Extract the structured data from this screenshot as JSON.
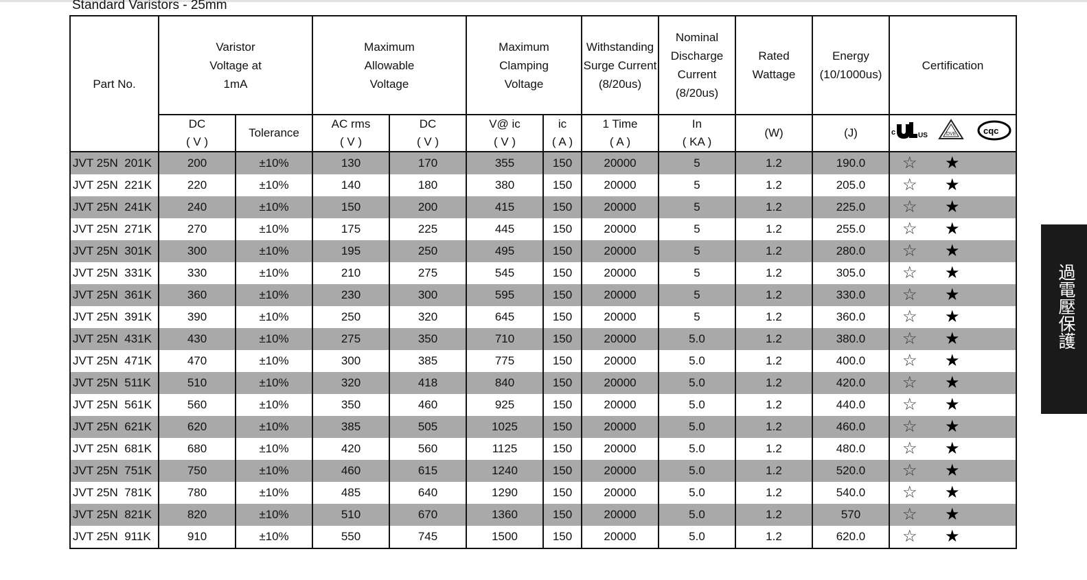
{
  "title": "Standard Varistors - 25mm",
  "header": {
    "part_no": "Part No.",
    "varistor_voltage": "Varistor Voltage at 1mA",
    "max_allowable_voltage": "Maximum Allowable Voltage",
    "max_clamping_voltage": "Maximum Clamping Voltage",
    "withstanding_surge_current": "Withstanding Surge Current (8/20us)",
    "nominal_discharge_current": "Nominal Discharge Current (8/20us)",
    "rated_wattage": "Rated Wattage",
    "energy": "Energy (10/1000us)",
    "certification": "Certification",
    "dc": "DC",
    "dc_unit": "( V )",
    "tolerance": "Tolerance",
    "ac_rms": "AC rms",
    "ac_unit": "( V )",
    "dc2": "DC",
    "dc2_unit": "( V )",
    "v_at_ic": "V@ ic",
    "v_unit": "( V )",
    "ic": "ic",
    "ic_unit": "( A )",
    "one_time": "1 Time",
    "one_time_unit": "( A )",
    "in": "In",
    "in_unit": "( KA )",
    "w_unit": "(W)",
    "j_unit": "(J)"
  },
  "cert_logos": [
    "ul-listed-logo",
    "vde-logo",
    "cqc-logo"
  ],
  "rows": [
    {
      "part": "JVT 25N  201K",
      "dc": "200",
      "tol": "±10%",
      "ac": "130",
      "dcmax": "170",
      "vc": "355",
      "ic": "150",
      "surge": "20000",
      "in": "5",
      "watt": "1.2",
      "energy": "190.0",
      "cert_ul": "☆",
      "cert_vde": "★"
    },
    {
      "part": "JVT 25N  221K",
      "dc": "220",
      "tol": "±10%",
      "ac": "140",
      "dcmax": "180",
      "vc": "380",
      "ic": "150",
      "surge": "20000",
      "in": "5",
      "watt": "1.2",
      "energy": "205.0",
      "cert_ul": "☆",
      "cert_vde": "★"
    },
    {
      "part": "JVT 25N  241K",
      "dc": "240",
      "tol": "±10%",
      "ac": "150",
      "dcmax": "200",
      "vc": "415",
      "ic": "150",
      "surge": "20000",
      "in": "5",
      "watt": "1.2",
      "energy": "225.0",
      "cert_ul": "☆",
      "cert_vde": "★"
    },
    {
      "part": "JVT 25N  271K",
      "dc": "270",
      "tol": "±10%",
      "ac": "175",
      "dcmax": "225",
      "vc": "445",
      "ic": "150",
      "surge": "20000",
      "in": "5",
      "watt": "1.2",
      "energy": "255.0",
      "cert_ul": "☆",
      "cert_vde": "★"
    },
    {
      "part": "JVT 25N  301K",
      "dc": "300",
      "tol": "±10%",
      "ac": "195",
      "dcmax": "250",
      "vc": "495",
      "ic": "150",
      "surge": "20000",
      "in": "5",
      "watt": "1.2",
      "energy": "280.0",
      "cert_ul": "☆",
      "cert_vde": "★"
    },
    {
      "part": "JVT 25N  331K",
      "dc": "330",
      "tol": "±10%",
      "ac": "210",
      "dcmax": "275",
      "vc": "545",
      "ic": "150",
      "surge": "20000",
      "in": "5",
      "watt": "1.2",
      "energy": "305.0",
      "cert_ul": "☆",
      "cert_vde": "★"
    },
    {
      "part": "JVT 25N  361K",
      "dc": "360",
      "tol": "±10%",
      "ac": "230",
      "dcmax": "300",
      "vc": "595",
      "ic": "150",
      "surge": "20000",
      "in": "5",
      "watt": "1.2",
      "energy": "330.0",
      "cert_ul": "☆",
      "cert_vde": "★"
    },
    {
      "part": "JVT 25N  391K",
      "dc": "390",
      "tol": "±10%",
      "ac": "250",
      "dcmax": "320",
      "vc": "645",
      "ic": "150",
      "surge": "20000",
      "in": "5",
      "watt": "1.2",
      "energy": "360.0",
      "cert_ul": "☆",
      "cert_vde": "★"
    },
    {
      "part": "JVT 25N  431K",
      "dc": "430",
      "tol": "±10%",
      "ac": "275",
      "dcmax": "350",
      "vc": "710",
      "ic": "150",
      "surge": "20000",
      "in": "5.0",
      "watt": "1.2",
      "energy": "380.0",
      "cert_ul": "☆",
      "cert_vde": "★"
    },
    {
      "part": "JVT 25N  471K",
      "dc": "470",
      "tol": "±10%",
      "ac": "300",
      "dcmax": "385",
      "vc": "775",
      "ic": "150",
      "surge": "20000",
      "in": "5.0",
      "watt": "1.2",
      "energy": "400.0",
      "cert_ul": "☆",
      "cert_vde": "★"
    },
    {
      "part": "JVT 25N  511K",
      "dc": "510",
      "tol": "±10%",
      "ac": "320",
      "dcmax": "418",
      "vc": "840",
      "ic": "150",
      "surge": "20000",
      "in": "5.0",
      "watt": "1.2",
      "energy": "420.0",
      "cert_ul": "☆",
      "cert_vde": "★"
    },
    {
      "part": "JVT 25N  561K",
      "dc": "560",
      "tol": "±10%",
      "ac": "350",
      "dcmax": "460",
      "vc": "925",
      "ic": "150",
      "surge": "20000",
      "in": "5.0",
      "watt": "1.2",
      "energy": "440.0",
      "cert_ul": "☆",
      "cert_vde": "★"
    },
    {
      "part": "JVT 25N  621K",
      "dc": "620",
      "tol": "±10%",
      "ac": "385",
      "dcmax": "505",
      "vc": "1025",
      "ic": "150",
      "surge": "20000",
      "in": "5.0",
      "watt": "1.2",
      "energy": "460.0",
      "cert_ul": "☆",
      "cert_vde": "★"
    },
    {
      "part": "JVT 25N  681K",
      "dc": "680",
      "tol": "±10%",
      "ac": "420",
      "dcmax": "560",
      "vc": "1125",
      "ic": "150",
      "surge": "20000",
      "in": "5.0",
      "watt": "1.2",
      "energy": "480.0",
      "cert_ul": "☆",
      "cert_vde": "★"
    },
    {
      "part": "JVT 25N  751K",
      "dc": "750",
      "tol": "±10%",
      "ac": "460",
      "dcmax": "615",
      "vc": "1240",
      "ic": "150",
      "surge": "20000",
      "in": "5.0",
      "watt": "1.2",
      "energy": "520.0",
      "cert_ul": "☆",
      "cert_vde": "★"
    },
    {
      "part": "JVT 25N  781K",
      "dc": "780",
      "tol": "±10%",
      "ac": "485",
      "dcmax": "640",
      "vc": "1290",
      "ic": "150",
      "surge": "20000",
      "in": "5.0",
      "watt": "1.2",
      "energy": "540.0",
      "cert_ul": "☆",
      "cert_vde": "★"
    },
    {
      "part": "JVT 25N  821K",
      "dc": "820",
      "tol": "±10%",
      "ac": "510",
      "dcmax": "670",
      "vc": "1360",
      "ic": "150",
      "surge": "20000",
      "in": "5.0",
      "watt": "1.2",
      "energy": "570",
      "cert_ul": "☆",
      "cert_vde": "★"
    },
    {
      "part": "JVT 25N  911K",
      "dc": "910",
      "tol": "±10%",
      "ac": "550",
      "dcmax": "745",
      "vc": "1500",
      "ic": "150",
      "surge": "20000",
      "in": "5.0",
      "watt": "1.2",
      "energy": "620.0",
      "cert_ul": "☆",
      "cert_vde": "★"
    }
  ],
  "side_tab": {
    "label": "過電壓保護"
  },
  "colors": {
    "shaded_row": "#a9a9a9",
    "side_tab_bg": "#1a1a1a",
    "border": "#111111"
  }
}
